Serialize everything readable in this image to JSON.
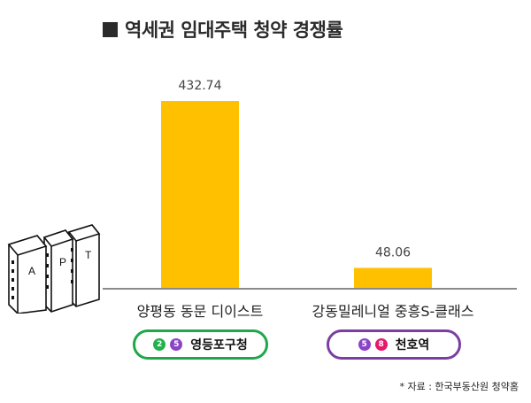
{
  "title": "역세권 임대주택 청약 경쟁률",
  "chart_data": {
    "type": "bar",
    "categories": [
      "양평동 동문 디이스트",
      "강동밀레니얼 중흥S-클래스"
    ],
    "values": [
      432.74,
      48.06
    ],
    "value_labels": [
      "432.74",
      "48.06"
    ],
    "ylim": [
      0,
      432.74
    ],
    "bar_color": "#FFC000",
    "grid": false,
    "legend": "none"
  },
  "stations": [
    {
      "lines": [
        {
          "number": "2",
          "color": "#22b14c"
        },
        {
          "number": "5",
          "color": "#8b45c4"
        }
      ],
      "name": "영등포구청",
      "border_color": "#1fa84a"
    },
    {
      "lines": [
        {
          "number": "5",
          "color": "#8b45c4"
        },
        {
          "number": "8",
          "color": "#e6196b"
        }
      ],
      "name": "천호역",
      "border_color": "#7b3fa3"
    }
  ],
  "illustration": {
    "icon": "apartment-buildings-icon",
    "letters": [
      "A",
      "P",
      "T"
    ]
  },
  "source": "* 자료 : 한국부동산원 청약홈"
}
